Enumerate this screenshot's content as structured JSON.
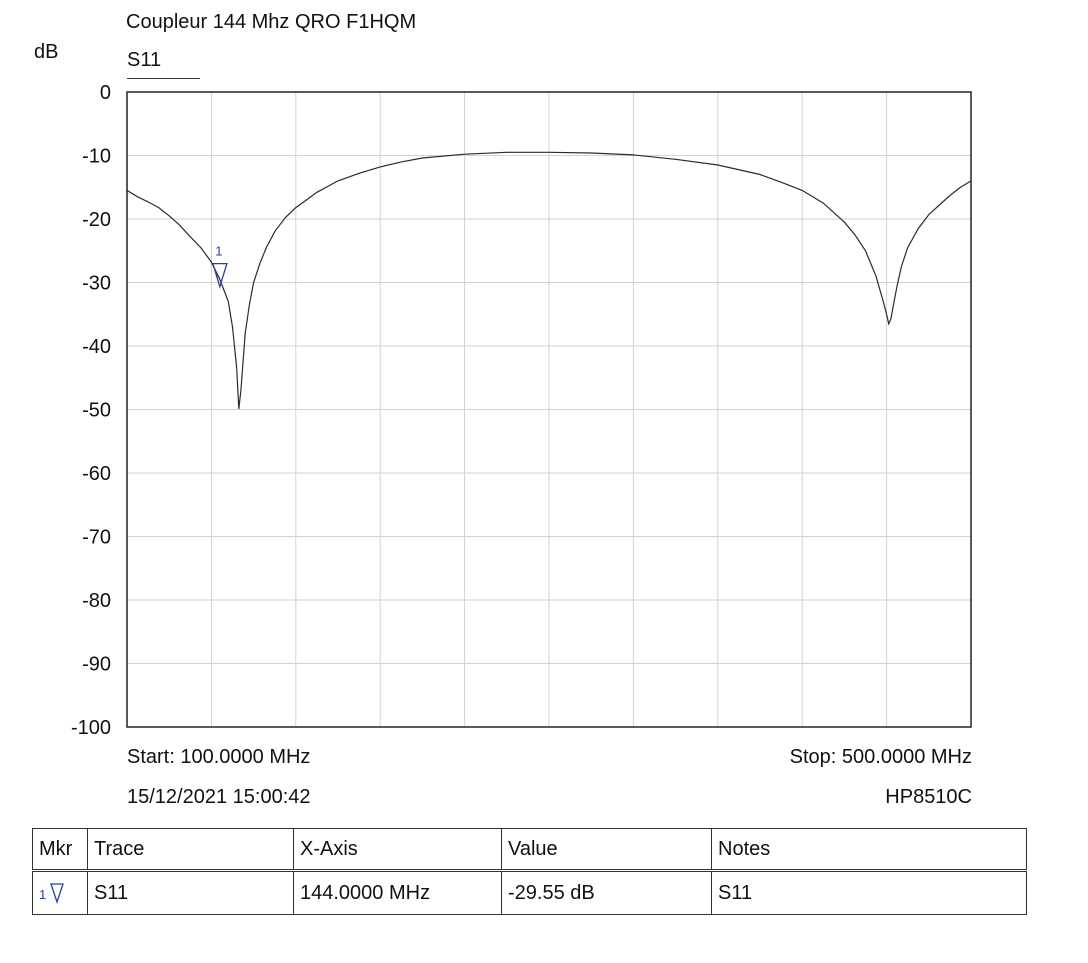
{
  "chart_data": {
    "type": "line",
    "title": "Coupleur 144 Mhz QRO F1HQM",
    "ylabel": "dB",
    "trace_label": "S11",
    "xlim": [
      100,
      500
    ],
    "ylim": [
      -100,
      0
    ],
    "yticks": [
      "0",
      "-10",
      "-20",
      "-30",
      "-40",
      "-50",
      "-60",
      "-70",
      "-80",
      "-90",
      "-100"
    ],
    "grid": true,
    "series": [
      {
        "name": "S11",
        "color": "#2b2b2b",
        "x": [
          100,
          105,
          110,
          115,
          120,
          125,
          130,
          135,
          140,
          144,
          148,
          150,
          152,
          153,
          154,
          156,
          158,
          160,
          163,
          166,
          170,
          175,
          180,
          185,
          190,
          200,
          210,
          220,
          230,
          240,
          260,
          280,
          300,
          320,
          340,
          360,
          380,
          400,
          410,
          420,
          430,
          440,
          445,
          450,
          455,
          458,
          460,
          461,
          462,
          463,
          465,
          467,
          470,
          475,
          480,
          485,
          490,
          495,
          500
        ],
        "y": [
          -15.5,
          -16.5,
          -17.3,
          -18.2,
          -19.5,
          -21.0,
          -22.8,
          -24.5,
          -26.8,
          -29.5,
          -33.0,
          -37.0,
          -43.5,
          -49.9,
          -47.0,
          -38.0,
          -33.5,
          -30.0,
          -27.0,
          -24.5,
          -22.0,
          -19.8,
          -18.2,
          -17.0,
          -15.8,
          -14.0,
          -12.8,
          -11.8,
          -11.0,
          -10.4,
          -9.8,
          -9.5,
          -9.5,
          -9.6,
          -9.9,
          -10.6,
          -11.5,
          -13.0,
          -14.2,
          -15.5,
          -17.5,
          -20.5,
          -22.5,
          -25.0,
          -29.0,
          -32.5,
          -35.0,
          -36.5,
          -35.8,
          -34.0,
          -30.5,
          -27.5,
          -24.5,
          -21.5,
          -19.3,
          -17.8,
          -16.3,
          -15.0,
          -14.0
        ]
      }
    ],
    "markers": [
      {
        "id": "1",
        "x": 144.0,
        "y": -29.55,
        "color": "#2a3fa0"
      }
    ],
    "footer": {
      "start": "Start: 100.0000 MHz",
      "stop": "Stop: 500.0000 MHz",
      "timestamp": "15/12/2021 15:00:42",
      "instrument": "HP8510C"
    }
  },
  "marker_table": {
    "headers": [
      "Mkr",
      "Trace",
      "X-Axis",
      "Value",
      "Notes"
    ],
    "rows": [
      {
        "mkr": "1",
        "trace": "S11",
        "x_axis": "144.0000 MHz",
        "value": "-29.55 dB",
        "notes": "S11"
      }
    ]
  }
}
